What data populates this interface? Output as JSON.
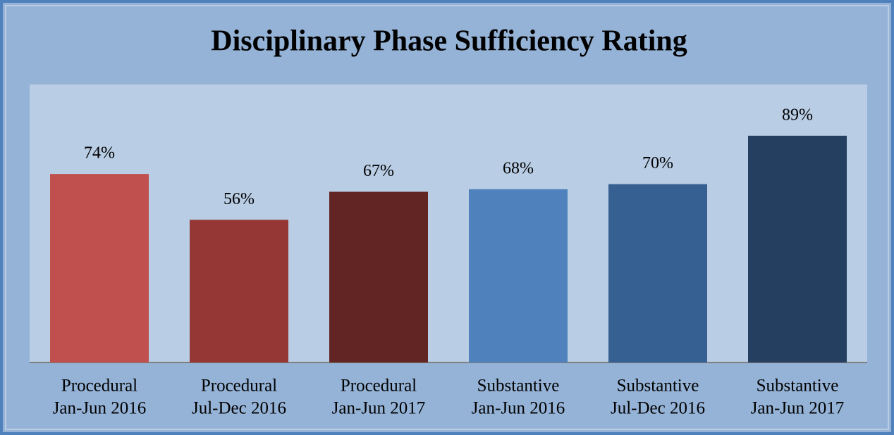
{
  "chart_data": {
    "type": "bar",
    "title": "Disciplinary Phase Sufficiency Rating",
    "categories": [
      [
        "Procedural",
        "Jan-Jun 2016"
      ],
      [
        "Procedural",
        "Jul-Dec 2016"
      ],
      [
        "Procedural",
        "Jan-Jun 2017"
      ],
      [
        "Substantive",
        "Jan-Jun 2016"
      ],
      [
        "Substantive",
        "Jul-Dec 2016"
      ],
      [
        "Substantive",
        "Jan-Jun 2017"
      ]
    ],
    "values": [
      74,
      56,
      67,
      68,
      70,
      89
    ],
    "value_labels": [
      "74%",
      "56%",
      "67%",
      "68%",
      "70%",
      "89%"
    ],
    "colors": [
      "#c0504d",
      "#953735",
      "#632523",
      "#4f81bd",
      "#376092",
      "#243f60"
    ],
    "ylim": [
      0,
      100
    ]
  }
}
